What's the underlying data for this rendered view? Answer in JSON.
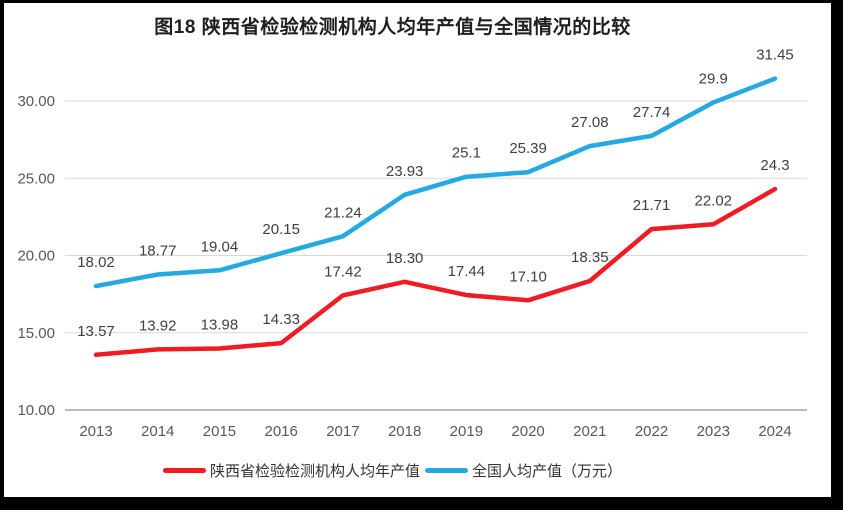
{
  "chart_data": {
    "type": "line",
    "title": "图18 陕西省检验检测机构人均年产值与全国情况的比较",
    "categories": [
      "2013",
      "2014",
      "2015",
      "2016",
      "2017",
      "2018",
      "2019",
      "2020",
      "2021",
      "2022",
      "2023",
      "2024"
    ],
    "series": [
      {
        "name": "陕西省检验检测机构人均年产值",
        "color": "#ee1c25",
        "values": [
          13.57,
          13.92,
          13.98,
          14.33,
          17.42,
          18.3,
          17.44,
          17.1,
          18.35,
          21.71,
          22.02,
          24.3
        ],
        "labels": [
          "13.57",
          "13.92",
          "13.98",
          "14.33",
          "17.42",
          "18.30",
          "17.44",
          "17.10",
          "18.35",
          "21.71",
          "22.02",
          "24.3"
        ]
      },
      {
        "name": "全国人均产值（万元）",
        "color": "#25a9e0",
        "values": [
          18.02,
          18.77,
          19.04,
          20.15,
          21.24,
          23.93,
          25.1,
          25.39,
          27.08,
          27.74,
          29.9,
          31.45
        ],
        "labels": [
          "18.02",
          "18.77",
          "19.04",
          "20.15",
          "21.24",
          "23.93",
          "25.1",
          "25.39",
          "27.08",
          "27.74",
          "29.9",
          "31.45"
        ]
      }
    ],
    "y_axis": {
      "min": 10,
      "max": 30,
      "step": 5,
      "ticks": [
        {
          "value": 30,
          "label": "30.00"
        },
        {
          "value": 25,
          "label": "25.00"
        },
        {
          "value": 20,
          "label": "20.00"
        },
        {
          "value": 15,
          "label": "15.00"
        },
        {
          "value": 10,
          "label": "10.00"
        }
      ]
    },
    "legend_position": "bottom",
    "grid": true,
    "colors": {
      "gridline": "#d9d9d9",
      "axis_line": "#a6a6a6",
      "tick_label": "#595959",
      "data_label": "#404040",
      "title": "#1f1f1f",
      "legend_text": "#333333",
      "background": "#ffffff",
      "frame": "#000000"
    }
  }
}
